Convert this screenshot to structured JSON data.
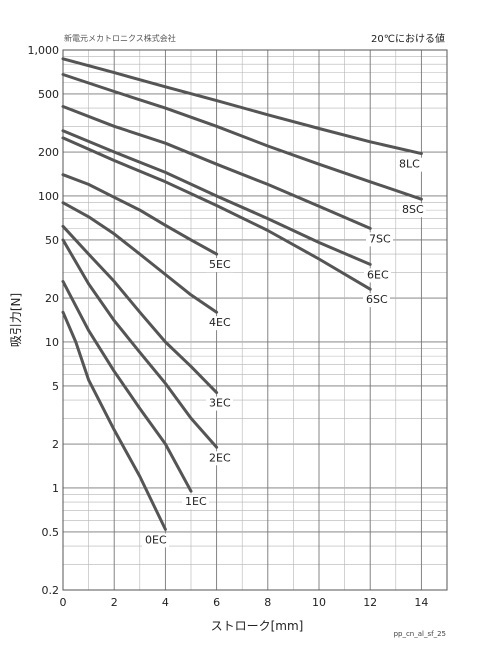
{
  "header": {
    "company": "新電元メカトロニクス株式会社",
    "condition": "20℃における値",
    "code": "pp_cn_al_sf_25"
  },
  "chart_data": {
    "type": "line",
    "xlabel": "ストローク[mm]",
    "ylabel": "吸引力[N]",
    "xlim": [
      0,
      15
    ],
    "ylim": [
      0.2,
      1000
    ],
    "yscale": "log",
    "grid": true,
    "x_ticks": [
      0,
      2,
      4,
      6,
      8,
      10,
      12,
      14
    ],
    "y_ticks": [
      {
        "value": 1000,
        "label": "1,000"
      },
      {
        "value": 500,
        "label": "500"
      },
      {
        "value": 200,
        "label": "200"
      },
      {
        "value": 100,
        "label": "100"
      },
      {
        "value": 50,
        "label": "50"
      },
      {
        "value": 20,
        "label": "20"
      },
      {
        "value": 10,
        "label": "10"
      },
      {
        "value": 5,
        "label": "5"
      },
      {
        "value": 2,
        "label": "2"
      },
      {
        "value": 1,
        "label": "1"
      },
      {
        "value": 0.5,
        "label": "0.5"
      },
      {
        "value": 0.2,
        "label": "0.2"
      }
    ],
    "line_color": "#555555",
    "series": [
      {
        "name": "8LC",
        "x": [
          0,
          2,
          4,
          6,
          8,
          10,
          12,
          14
        ],
        "y": [
          870,
          700,
          560,
          450,
          360,
          290,
          235,
          195
        ]
      },
      {
        "name": "8SC",
        "x": [
          0,
          2,
          4,
          6,
          8,
          10,
          12,
          14
        ],
        "y": [
          680,
          520,
          400,
          300,
          220,
          165,
          125,
          95
        ]
      },
      {
        "name": "7SC",
        "x": [
          0,
          2,
          4,
          6,
          8,
          10,
          12
        ],
        "y": [
          410,
          300,
          230,
          165,
          120,
          85,
          60
        ]
      },
      {
        "name": "6EC",
        "x": [
          0,
          2,
          4,
          6,
          8,
          10,
          12
        ],
        "y": [
          280,
          200,
          145,
          100,
          70,
          48,
          34
        ]
      },
      {
        "name": "6SC",
        "x": [
          0,
          2,
          4,
          6,
          8,
          10,
          12
        ],
        "y": [
          250,
          175,
          125,
          86,
          58,
          37,
          23
        ]
      },
      {
        "name": "5EC",
        "x": [
          0,
          1,
          2,
          3,
          4,
          5,
          6
        ],
        "y": [
          140,
          120,
          98,
          80,
          63,
          50,
          40
        ]
      },
      {
        "name": "4EC",
        "x": [
          0,
          1,
          2,
          3,
          4,
          5,
          6
        ],
        "y": [
          90,
          72,
          55,
          40,
          29,
          21,
          16
        ]
      },
      {
        "name": "3EC",
        "x": [
          0,
          1,
          2,
          3,
          4,
          5,
          6
        ],
        "y": [
          62,
          40,
          26,
          16,
          10,
          6.8,
          4.5
        ]
      },
      {
        "name": "2EC",
        "x": [
          0,
          1,
          2,
          3,
          4,
          5,
          6
        ],
        "y": [
          50,
          25,
          14,
          8.5,
          5.2,
          3.0,
          1.9
        ]
      },
      {
        "name": "1EC",
        "x": [
          0,
          1,
          2,
          3,
          4,
          5
        ],
        "y": [
          26,
          12,
          6.3,
          3.5,
          2.0,
          0.95
        ]
      },
      {
        "name": "0EC",
        "x": [
          0,
          0.5,
          1,
          2,
          3,
          4
        ],
        "y": [
          16,
          10,
          5.5,
          2.5,
          1.2,
          0.52
        ]
      }
    ]
  }
}
